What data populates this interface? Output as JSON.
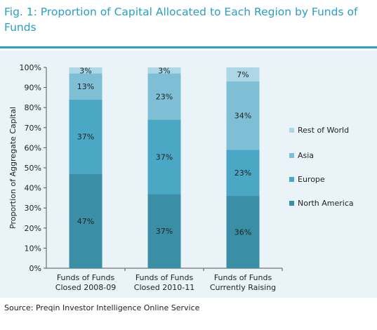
{
  "figure": {
    "title": "Fig. 1: Proportion of Capital Allocated to Each Region by Funds of Funds",
    "source": "Source: Preqin Investor Intelligence Online Service"
  },
  "chart_data": {
    "type": "bar",
    "stacked": true,
    "categories": [
      [
        "Funds of Funds",
        "Closed 2008-09"
      ],
      [
        "Funds of Funds",
        "Closed 2010-11"
      ],
      [
        "Funds of Funds",
        "Currently Raising"
      ]
    ],
    "series": [
      {
        "name": "North America",
        "values": [
          47,
          37,
          36
        ],
        "labels": [
          "47%",
          "37%",
          "36%"
        ],
        "color": "#3a8ea5"
      },
      {
        "name": "Europe",
        "values": [
          37,
          37,
          23
        ],
        "labels": [
          "37%",
          "37%",
          "23%"
        ],
        "color": "#4ba8c4"
      },
      {
        "name": "Asia",
        "values": [
          13,
          23,
          34
        ],
        "labels": [
          "13%",
          "23%",
          "34%"
        ],
        "color": "#7ebfd6"
      },
      {
        "name": "Rest of World",
        "values": [
          3,
          3,
          7
        ],
        "labels": [
          "3%",
          "3%",
          "7%"
        ],
        "color": "#add6e6"
      }
    ],
    "ylabel": "Proportion of Aggregate Capital",
    "xlabel": "",
    "ylim": [
      0,
      100
    ],
    "yticks": [
      "0%",
      "10%",
      "20%",
      "30%",
      "40%",
      "50%",
      "60%",
      "70%",
      "80%",
      "90%",
      "100%"
    ],
    "legend_position": "right",
    "grid": false
  }
}
